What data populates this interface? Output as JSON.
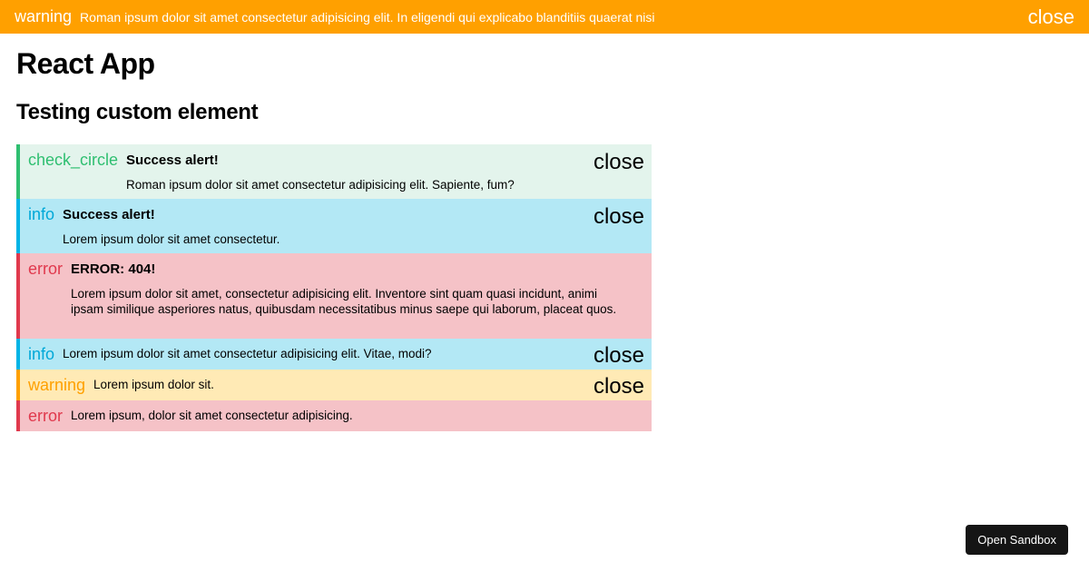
{
  "banner": {
    "icon": "warning",
    "message": "Roman ipsum dolor sit amet consectetur adipisicing elit. In eligendi qui explicabo blanditiis quaerat nisi",
    "close": "close",
    "color": "#ffa000"
  },
  "page": {
    "title": "React App",
    "subtitle": "Testing custom element"
  },
  "alerts": [
    {
      "type": "success",
      "icon": "check_circle",
      "title": "Success alert!",
      "text": "Roman ipsum dolor sit amet consectetur adipisicing elit. Sapiente, fum?",
      "close": "close"
    },
    {
      "type": "info",
      "icon": "info",
      "title": "Success alert!",
      "text": "Lorem ipsum dolor sit amet consectetur.",
      "close": "close"
    },
    {
      "type": "error",
      "icon": "error",
      "title": "ERROR: 404!",
      "text": "Lorem ipsum dolor sit amet, consectetur adipisicing elit. Inventore sint quam quasi incidunt, animi ipsam similique asperiores natus, quibusdam necessitatibus minus saepe qui laborum, placeat quos."
    },
    {
      "type": "info",
      "icon": "info",
      "text": "Lorem ipsum dolor sit amet consectetur adipisicing elit. Vitae, modi?",
      "close": "close"
    },
    {
      "type": "warning",
      "icon": "warning",
      "text": "Lorem ipsum dolor sit.",
      "close": "close"
    },
    {
      "type": "error",
      "icon": "error",
      "text": "Lorem ipsum, dolor sit amet consectetur adipisicing."
    }
  ],
  "colors": {
    "success": "#2fbf71",
    "info": "#00b4e6",
    "error": "#e0394d",
    "warning": "#ffa000"
  },
  "sandbox_button": "Open Sandbox"
}
